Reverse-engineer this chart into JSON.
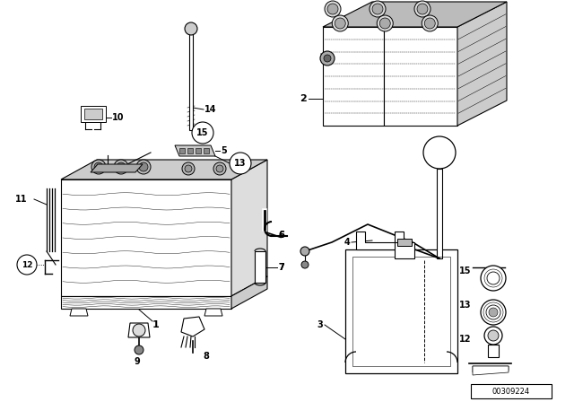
{
  "bg_color": "#ffffff",
  "line_color": "#000000",
  "part_number": "00309224",
  "fig_w": 6.4,
  "fig_h": 4.48,
  "dpi": 100
}
